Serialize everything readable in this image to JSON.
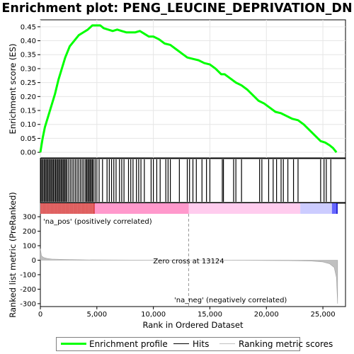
{
  "chart_data": {
    "type": "line",
    "title": "Enrichment plot: PENG_LEUCINE_DEPRIVATION_DN",
    "top_panel": {
      "ylabel": "Enrichment score (ES)",
      "ylim": [
        -0.02,
        0.475
      ],
      "yticks": [
        0.0,
        0.05,
        0.1,
        0.15,
        0.2,
        0.25,
        0.3,
        0.35,
        0.4,
        0.45
      ],
      "ytick_labels": [
        "0.00",
        "0.05",
        "0.10",
        "0.15",
        "0.20",
        "0.25",
        "0.30",
        "0.35",
        "0.40",
        "0.45"
      ],
      "series": [
        {
          "name": "Enrichment profile",
          "color": "#00ff00",
          "x": [
            0,
            200,
            400,
            700,
            1000,
            1300,
            1600,
            1900,
            2200,
            2600,
            3000,
            3400,
            3800,
            4200,
            4600,
            5000,
            5300,
            5600,
            6000,
            6400,
            6800,
            7200,
            7600,
            8000,
            8400,
            8800,
            9200,
            9600,
            10000,
            10500,
            11000,
            11500,
            12000,
            12500,
            13000,
            13500,
            14000,
            14500,
            15000,
            15500,
            16000,
            16300,
            16800,
            17300,
            17800,
            18300,
            18800,
            19300,
            19800,
            20300,
            20800,
            21300,
            21800,
            22300,
            22800,
            23300,
            23800,
            24300,
            24800,
            25200,
            25600,
            25900,
            26200
          ],
          "y": [
            0.0,
            0.05,
            0.09,
            0.13,
            0.17,
            0.21,
            0.26,
            0.3,
            0.34,
            0.38,
            0.4,
            0.42,
            0.43,
            0.44,
            0.455,
            0.455,
            0.455,
            0.445,
            0.44,
            0.435,
            0.44,
            0.435,
            0.43,
            0.43,
            0.43,
            0.435,
            0.425,
            0.415,
            0.415,
            0.405,
            0.39,
            0.385,
            0.37,
            0.355,
            0.34,
            0.335,
            0.33,
            0.32,
            0.315,
            0.3,
            0.28,
            0.28,
            0.265,
            0.25,
            0.24,
            0.225,
            0.205,
            0.185,
            0.175,
            0.16,
            0.145,
            0.14,
            0.13,
            0.12,
            0.115,
            0.1,
            0.08,
            0.06,
            0.04,
            0.035,
            0.025,
            0.015,
            0.0
          ]
        }
      ]
    },
    "hits_panel": {
      "name": "Hits",
      "positions": [
        50,
        150,
        250,
        350,
        450,
        550,
        650,
        750,
        850,
        950,
        1050,
        1150,
        1250,
        1350,
        1450,
        1550,
        1650,
        1750,
        1850,
        1950,
        2050,
        2150,
        2250,
        2350,
        2500,
        2650,
        2800,
        2950,
        3100,
        3250,
        3400,
        3550,
        3700,
        3850,
        4000,
        4100,
        4200,
        4300,
        4400,
        4500,
        4600,
        4700,
        4850,
        5000,
        5200,
        5500,
        5900,
        6100,
        6300,
        6500,
        6700,
        7000,
        7200,
        7400,
        7800,
        8000,
        8200,
        8500,
        8700,
        8900,
        9200,
        9800,
        10000,
        10300,
        10600,
        11100,
        11300,
        11500,
        12300,
        13000,
        13200,
        13500,
        13800,
        14300,
        14700,
        15000,
        16100,
        16200,
        17100,
        17300,
        17800,
        19400,
        19600,
        20200,
        20600,
        20900,
        21300,
        21500,
        21900,
        22400,
        22800,
        24800,
        25100,
        25300,
        25700
      ],
      "rank_band_colors": [
        "#cc0000",
        "#ff99cc",
        "#ffccee",
        "#ccccff",
        "#6666ff",
        "#0000cc"
      ]
    },
    "bottom_panel": {
      "ylabel": "Ranked list metric (PreRanked)",
      "xlabel": "Rank in Ordered Dataset",
      "ylim": [
        -320,
        320
      ],
      "yticks": [
        -300,
        -200,
        -100,
        0,
        100,
        200,
        300
      ],
      "ytick_labels": [
        "-300",
        "-200",
        "-100",
        "0",
        "100",
        "200",
        "300"
      ],
      "xticks": [
        0,
        5000,
        10000,
        15000,
        20000,
        25000
      ],
      "xtick_labels": [
        "0",
        "5,000",
        "10,000",
        "15,000",
        "20,000",
        "25,000"
      ],
      "xlim": [
        0,
        27000
      ],
      "series": [
        {
          "name": "Ranking metric scores",
          "color": "#c0c0c0",
          "x": [
            0,
            100,
            300,
            600,
            1000,
            2000,
            4000,
            8000,
            13124,
            18000,
            22000,
            24000,
            25000,
            25600,
            26000,
            26200,
            26300
          ],
          "y": [
            80,
            30,
            18,
            12,
            8,
            5,
            2,
            1,
            0,
            -1,
            -3,
            -6,
            -12,
            -25,
            -50,
            -120,
            -300
          ]
        }
      ],
      "zero_cross": 13124,
      "annotations": {
        "zero_cross_text": "Zero cross at 13124",
        "pos_text": "'na_pos' (positively correlated)",
        "neg_text": "'na_neg' (negatively correlated)"
      }
    }
  },
  "legend": {
    "items": [
      {
        "label": "Enrichment profile",
        "color": "#00ff00"
      },
      {
        "label": "Hits",
        "color": "#000000"
      },
      {
        "label": "Ranking metric scores",
        "color": "#c0c0c0"
      }
    ]
  },
  "colors": {
    "pos_text": "#cc0000",
    "neg_text": "#0000cc",
    "frame": "#000000"
  }
}
